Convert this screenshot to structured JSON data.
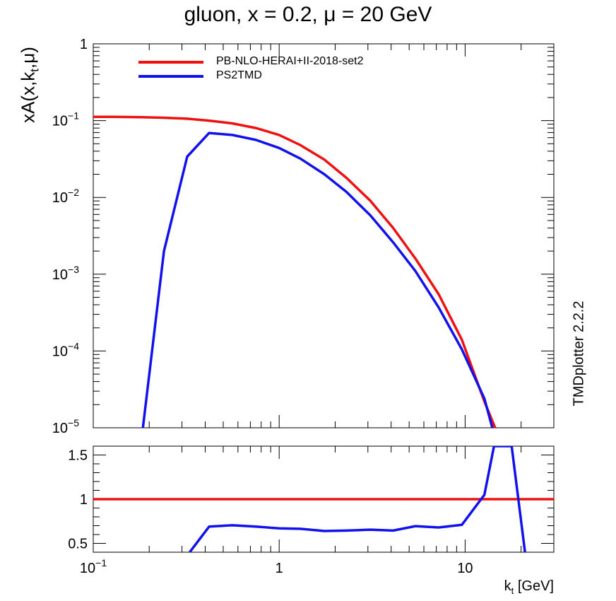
{
  "title": "gluon, x = 0.2, μ = 20 GeV",
  "watermark": "TMDplotter 2.2.2",
  "ylabel": {
    "main": "xA(x,k",
    "sub": "t",
    "end": ",μ)"
  },
  "xlabel": {
    "main": "k",
    "sub": "t",
    "end": " [GeV]"
  },
  "colors": {
    "series1": "#ee1111",
    "series2": "#1111ee",
    "axes": "#000000"
  },
  "chart_data": [
    {
      "type": "line",
      "panel": "main",
      "xscale": "log",
      "yscale": "log",
      "xlim": [
        0.1,
        30
      ],
      "ylim": [
        1e-05,
        1
      ],
      "xticks": [
        {
          "v": 0.1,
          "label": "10",
          "exp": "−1"
        },
        {
          "v": 1,
          "label": "1",
          "exp": ""
        },
        {
          "v": 10,
          "label": "10",
          "exp": ""
        }
      ],
      "yticks": [
        {
          "v": 1,
          "label": "1",
          "exp": ""
        },
        {
          "v": 0.1,
          "label": "10",
          "exp": "−1"
        },
        {
          "v": 0.01,
          "label": "10",
          "exp": "−2"
        },
        {
          "v": 0.001,
          "label": "10",
          "exp": "−3"
        },
        {
          "v": 0.0001,
          "label": "10",
          "exp": "−4"
        },
        {
          "v": 1e-05,
          "label": "10",
          "exp": "−5"
        }
      ],
      "legend_position": "top-left",
      "series": [
        {
          "name": "PB-NLO-HERAI+II-2018-set2",
          "color": "#ee1111",
          "x": [
            0.1,
            0.13,
            0.18,
            0.24,
            0.32,
            0.42,
            0.56,
            0.75,
            1.0,
            1.3,
            1.75,
            2.3,
            3.1,
            4.1,
            5.4,
            7.2,
            9.6,
            12.7,
            14.5
          ],
          "y": [
            0.112,
            0.112,
            0.111,
            0.109,
            0.106,
            0.1,
            0.092,
            0.08,
            0.065,
            0.048,
            0.031,
            0.018,
            0.009,
            0.004,
            0.0016,
            0.00055,
            0.00014,
            2.2e-05,
            1e-05
          ]
        },
        {
          "name": "PS2TMD",
          "color": "#1111ee",
          "x": [
            0.185,
            0.24,
            0.32,
            0.42,
            0.56,
            0.75,
            1.0,
            1.3,
            1.75,
            2.3,
            3.1,
            4.1,
            5.4,
            7.2,
            9.6,
            12.7,
            14.0
          ],
          "y": [
            1e-05,
            0.002,
            0.034,
            0.069,
            0.065,
            0.056,
            0.044,
            0.032,
            0.02,
            0.0118,
            0.0058,
            0.0026,
            0.0011,
            0.00037,
            0.000105,
            2.4e-05,
            1e-05
          ]
        }
      ]
    },
    {
      "type": "line",
      "panel": "ratio",
      "xscale": "log",
      "yscale": "linear",
      "xlim": [
        0.1,
        30
      ],
      "ylim": [
        0.4,
        1.6
      ],
      "yticks": [
        {
          "v": 1.5,
          "label": "1.5"
        },
        {
          "v": 1,
          "label": "1"
        },
        {
          "v": 0.5,
          "label": "0.5"
        }
      ],
      "series": [
        {
          "name": "PB-NLO-HERAI+II-2018-set2",
          "color": "#ee1111",
          "x": [
            0.1,
            30
          ],
          "y": [
            1.0,
            1.0
          ]
        },
        {
          "name": "PS2TMD",
          "color": "#1111ee",
          "x": [
            0.33,
            0.42,
            0.56,
            0.75,
            1.0,
            1.3,
            1.75,
            2.3,
            3.1,
            4.1,
            5.4,
            7.2,
            9.6,
            12.7,
            14.3,
            17.8,
            21.0
          ],
          "y": [
            0.4,
            0.69,
            0.705,
            0.69,
            0.67,
            0.665,
            0.64,
            0.645,
            0.655,
            0.645,
            0.695,
            0.68,
            0.71,
            1.05,
            1.6,
            1.6,
            0.4
          ]
        }
      ]
    }
  ]
}
